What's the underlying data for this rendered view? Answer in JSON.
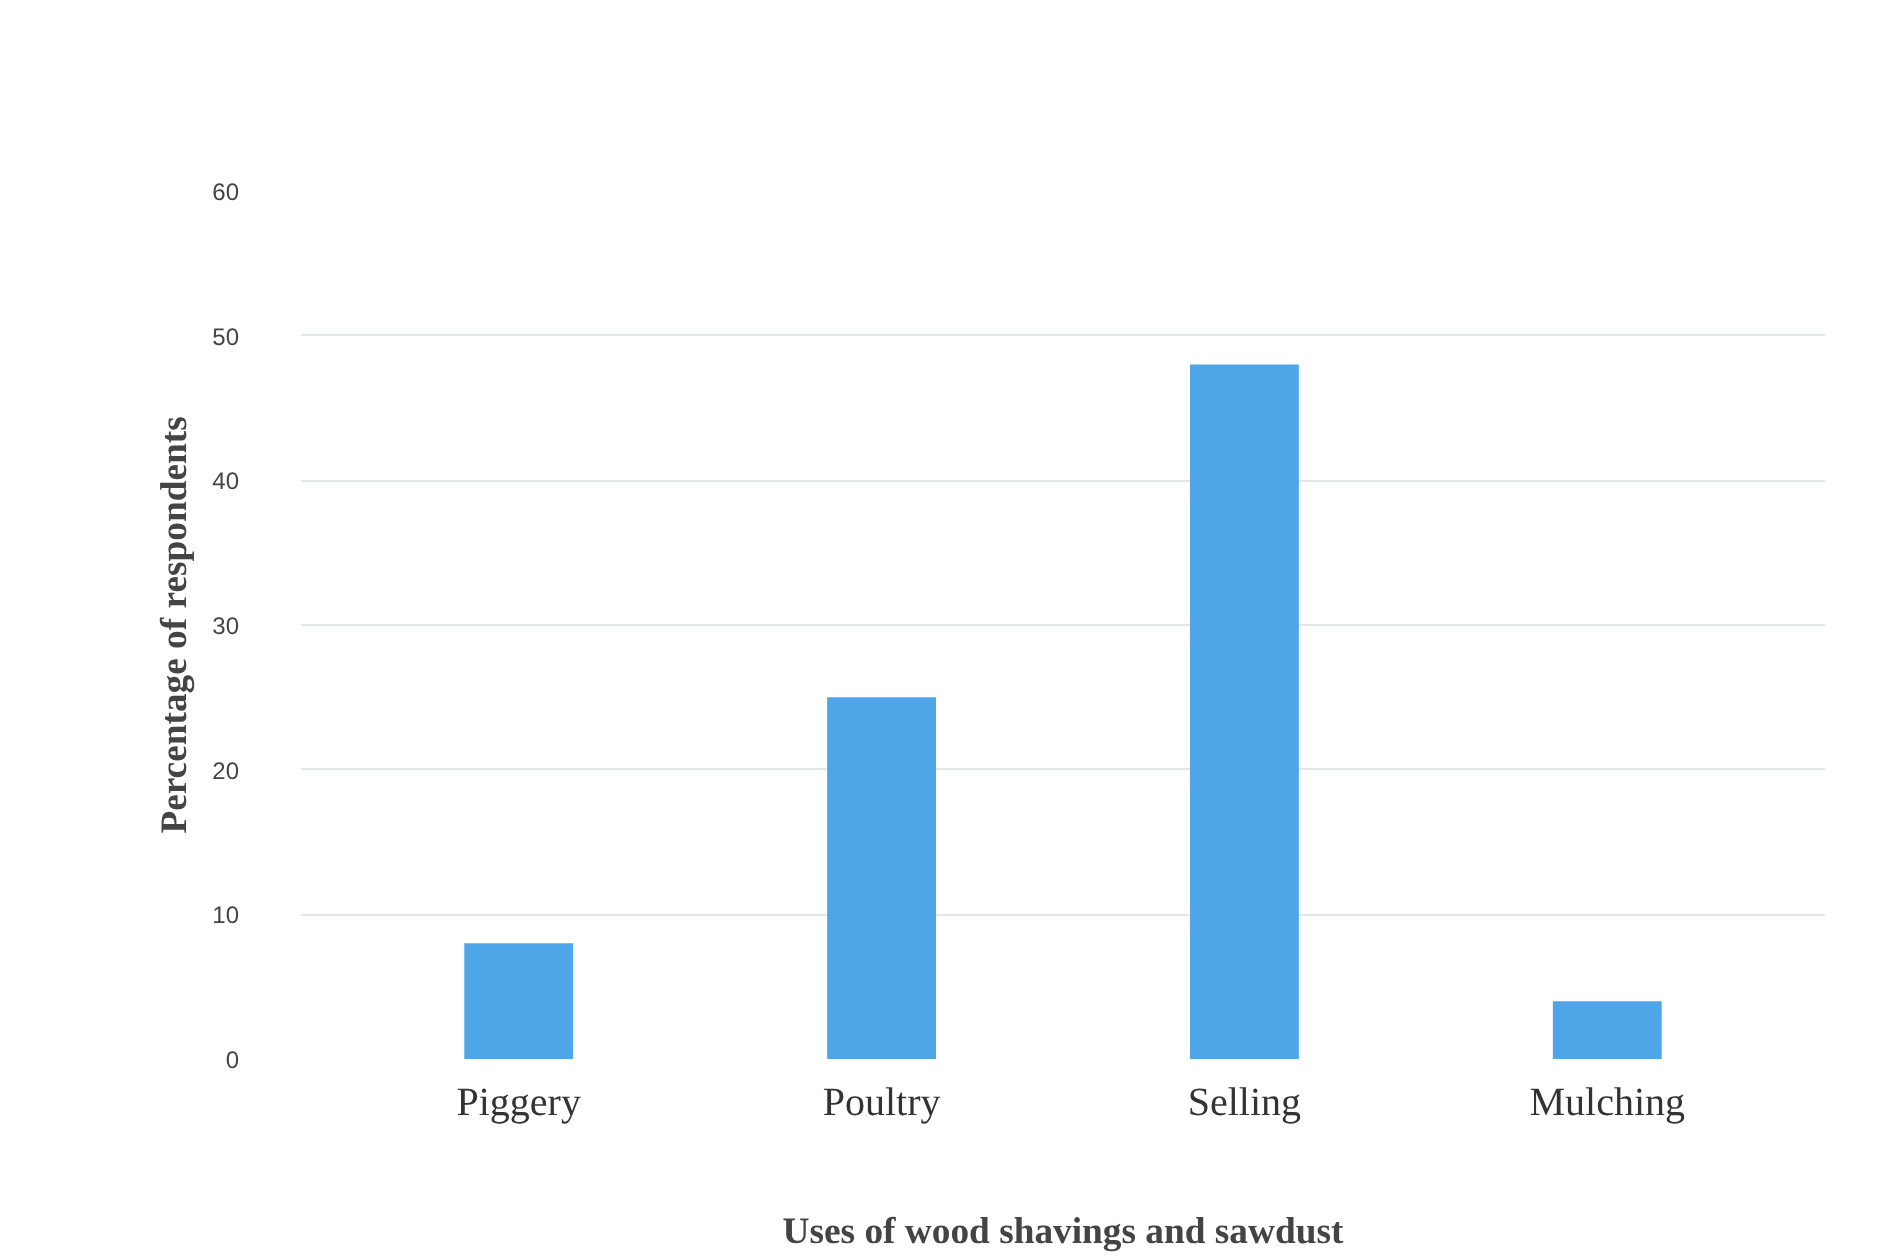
{
  "chart_data": {
    "type": "bar",
    "xlabel": "Uses of wood shavings and sawdust",
    "ylabel": "Percentage of respondents",
    "categories": [
      "Piggery",
      "Poultry",
      "Selling",
      "Mulching"
    ],
    "values": [
      8,
      25,
      48,
      4
    ],
    "color": "#4ea6e8",
    "ylim": [
      0,
      60
    ],
    "yticks": [
      0,
      10,
      20,
      30,
      40,
      50,
      60
    ],
    "grid": "y"
  }
}
